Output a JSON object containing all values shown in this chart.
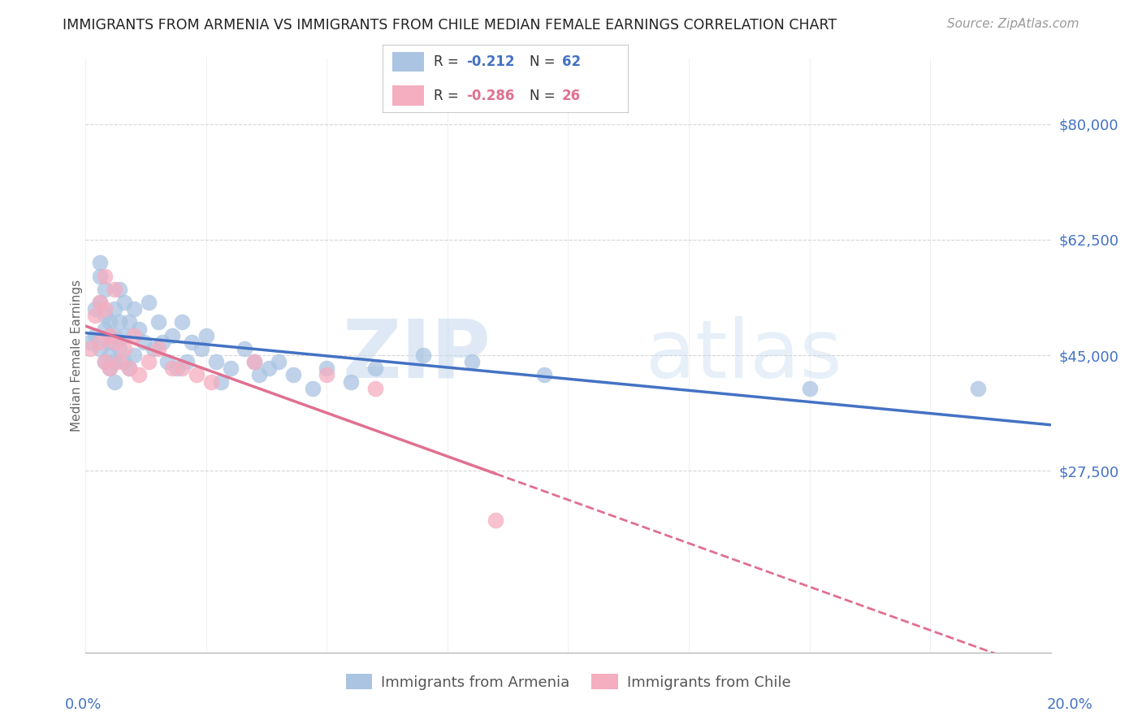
{
  "title": "IMMIGRANTS FROM ARMENIA VS IMMIGRANTS FROM CHILE MEDIAN FEMALE EARNINGS CORRELATION CHART",
  "source": "Source: ZipAtlas.com",
  "ylabel": "Median Female Earnings",
  "armenia_color": "#aac4e2",
  "chile_color": "#f5adc0",
  "armenia_line_color": "#4472c4",
  "chile_line_color": "#e07090",
  "armenia_R": "-0.212",
  "armenia_N": "62",
  "chile_R": "-0.286",
  "chile_N": "26",
  "legend_label_armenia": "Immigrants from Armenia",
  "legend_label_chile": "Immigrants from Chile",
  "watermark_zip": "ZIP",
  "watermark_atlas": "atlas",
  "xlim": [
    0.0,
    0.2
  ],
  "ylim": [
    0,
    90000
  ],
  "ytick_positions": [
    27500,
    45000,
    62500,
    80000
  ],
  "ytick_labels": [
    "$27,500",
    "$45,000",
    "$62,500",
    "$80,000"
  ],
  "armenia_x": [
    0.001,
    0.002,
    0.002,
    0.003,
    0.003,
    0.003,
    0.003,
    0.004,
    0.004,
    0.004,
    0.004,
    0.005,
    0.005,
    0.005,
    0.005,
    0.005,
    0.006,
    0.006,
    0.006,
    0.006,
    0.007,
    0.007,
    0.007,
    0.008,
    0.008,
    0.008,
    0.009,
    0.009,
    0.01,
    0.01,
    0.011,
    0.012,
    0.013,
    0.014,
    0.015,
    0.016,
    0.017,
    0.018,
    0.019,
    0.02,
    0.021,
    0.022,
    0.024,
    0.025,
    0.027,
    0.028,
    0.03,
    0.033,
    0.035,
    0.036,
    0.038,
    0.04,
    0.043,
    0.047,
    0.05,
    0.055,
    0.06,
    0.07,
    0.08,
    0.095,
    0.15,
    0.185
  ],
  "armenia_y": [
    47000,
    52000,
    48000,
    53000,
    57000,
    59000,
    46000,
    55000,
    51000,
    49000,
    44000,
    50000,
    47000,
    45000,
    43000,
    48000,
    52000,
    48000,
    44000,
    41000,
    55000,
    50000,
    46000,
    53000,
    48000,
    44000,
    50000,
    43000,
    52000,
    45000,
    49000,
    47000,
    53000,
    46000,
    50000,
    47000,
    44000,
    48000,
    43000,
    50000,
    44000,
    47000,
    46000,
    48000,
    44000,
    41000,
    43000,
    46000,
    44000,
    42000,
    43000,
    44000,
    42000,
    40000,
    43000,
    41000,
    43000,
    45000,
    44000,
    42000,
    40000,
    40000
  ],
  "chile_x": [
    0.001,
    0.002,
    0.003,
    0.003,
    0.004,
    0.004,
    0.004,
    0.005,
    0.005,
    0.006,
    0.006,
    0.007,
    0.008,
    0.009,
    0.01,
    0.011,
    0.013,
    0.015,
    0.018,
    0.02,
    0.023,
    0.026,
    0.035,
    0.05,
    0.06,
    0.085
  ],
  "chile_y": [
    46000,
    51000,
    53000,
    47000,
    57000,
    52000,
    44000,
    48000,
    43000,
    55000,
    47000,
    44000,
    46000,
    43000,
    48000,
    42000,
    44000,
    46000,
    43000,
    43000,
    42000,
    41000,
    44000,
    42000,
    40000,
    20000
  ]
}
